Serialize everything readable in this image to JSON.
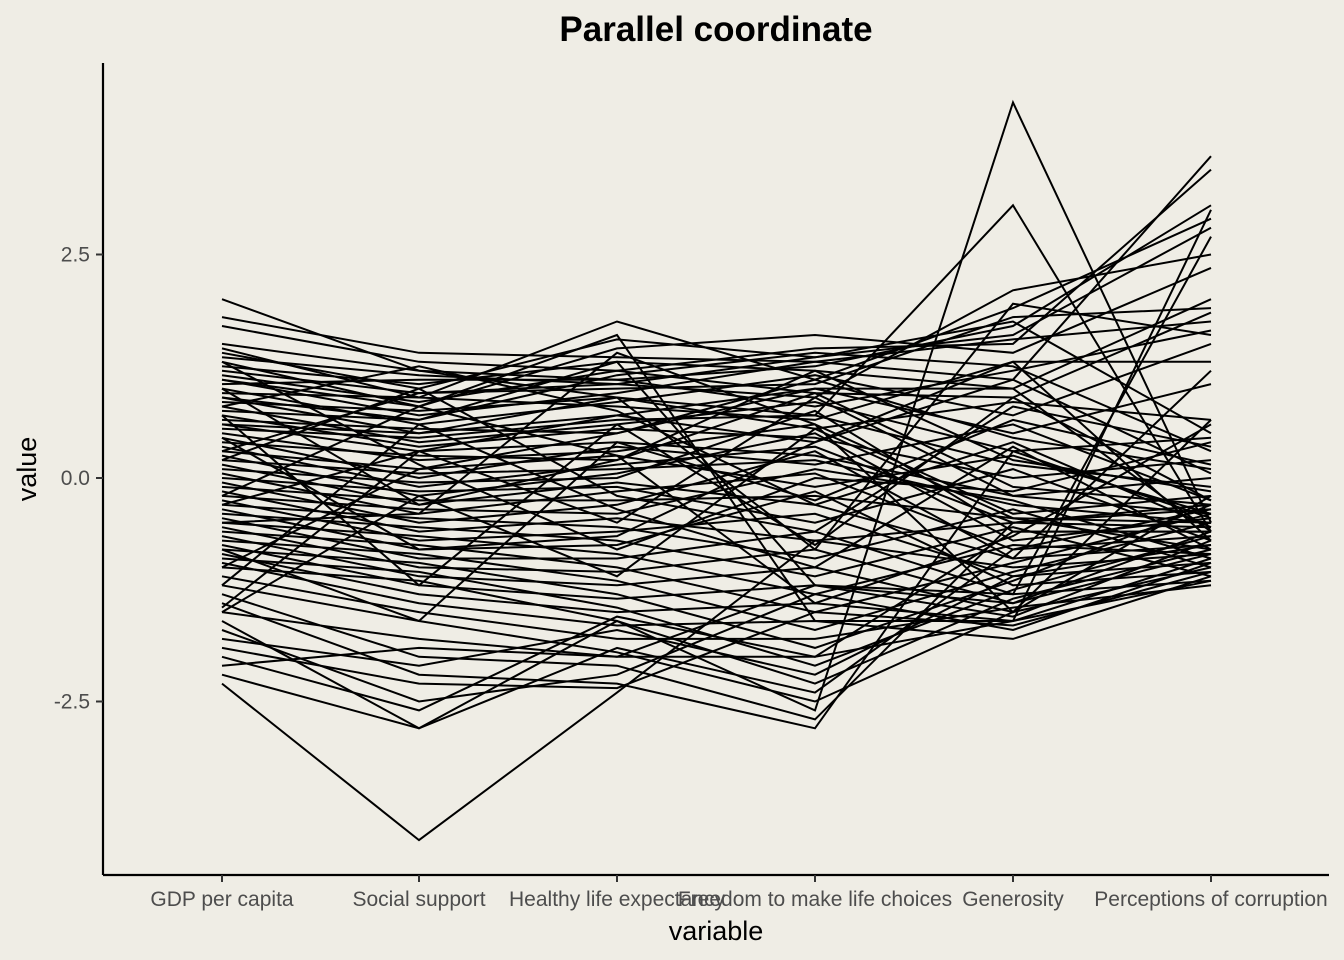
{
  "chart_data": {
    "type": "line",
    "title": "Parallel coordinate",
    "xlabel": "variable",
    "ylabel": "value",
    "categories": [
      "GDP per capita",
      "Social support",
      "Healthy life expectancy",
      "Freedom to make life choices",
      "Generosity",
      "Perceptions of corruption"
    ],
    "y_ticks": [
      -2.5,
      0.0,
      2.5
    ],
    "y_tick_labels": [
      "-2.5",
      "0.0",
      "2.5"
    ],
    "ylim": [
      -4.4,
      4.6
    ],
    "grid": false,
    "legend": "none",
    "series": [
      {
        "values": [
          -2.3,
          -4.05,
          -2.4,
          -0.7,
          -0.5,
          -0.3
        ]
      },
      {
        "values": [
          -2.2,
          -2.8,
          -1.6,
          -2.6,
          4.2,
          -0.5
        ]
      },
      {
        "values": [
          2.0,
          1.2,
          0.9,
          0.7,
          3.05,
          -0.6
        ]
      },
      {
        "values": [
          1.8,
          1.4,
          1.35,
          1.3,
          1.1,
          3.6
        ]
      },
      {
        "values": [
          1.7,
          1.3,
          1.2,
          1.45,
          1.5,
          3.45
        ]
      },
      {
        "values": [
          1.5,
          1.2,
          1.1,
          1.25,
          1.7,
          3.05
        ]
      },
      {
        "values": [
          1.45,
          0.9,
          1.75,
          1.1,
          1.9,
          2.9
        ]
      },
      {
        "values": [
          1.4,
          1.0,
          1.55,
          1.35,
          1.6,
          2.8
        ]
      },
      {
        "values": [
          1.35,
          1.15,
          1.05,
          0.9,
          2.1,
          2.5
        ]
      },
      {
        "values": [
          1.3,
          0.8,
          1.45,
          1.6,
          1.4,
          2.35
        ]
      },
      {
        "values": [
          1.25,
          1.05,
          1.3,
          1.2,
          1.0,
          2.0
        ]
      },
      {
        "values": [
          1.2,
          0.95,
          1.0,
          1.05,
          1.8,
          1.9
        ]
      },
      {
        "values": [
          1.15,
          0.85,
          1.2,
          0.95,
          0.9,
          1.85
        ]
      },
      {
        "values": [
          1.1,
          0.7,
          0.95,
          1.3,
          1.55,
          1.75
        ]
      },
      {
        "values": [
          1.05,
          1.1,
          1.1,
          0.8,
          1.2,
          1.65
        ]
      },
      {
        "values": [
          1.0,
          0.6,
          0.85,
          1.15,
          0.7,
          1.5
        ]
      },
      {
        "values": [
          0.95,
          0.9,
          0.8,
          0.65,
          1.3,
          1.3
        ]
      },
      {
        "values": [
          0.9,
          0.5,
          0.7,
          1.0,
          0.5,
          1.05
        ]
      },
      {
        "values": [
          0.85,
          0.75,
          0.9,
          0.55,
          0.85,
          0.65
        ]
      },
      {
        "values": [
          0.8,
          0.4,
          0.6,
          0.85,
          0.3,
          0.45
        ]
      },
      {
        "values": [
          0.75,
          0.65,
          1.15,
          1.4,
          1.25,
          0.3
        ]
      },
      {
        "values": [
          0.7,
          0.35,
          0.55,
          0.45,
          0.0,
          0.2
        ]
      },
      {
        "values": [
          0.65,
          0.55,
          0.5,
          1.1,
          0.45,
          0.1
        ]
      },
      {
        "values": [
          0.6,
          0.3,
          0.4,
          0.25,
          -0.2,
          0.0
        ]
      },
      {
        "values": [
          0.55,
          0.45,
          0.65,
          0.7,
          0.15,
          -0.1
        ]
      },
      {
        "values": [
          0.5,
          0.2,
          0.3,
          0.6,
          -0.4,
          -0.2
        ]
      },
      {
        "values": [
          0.45,
          0.0,
          0.35,
          0.15,
          0.6,
          -0.25
        ]
      },
      {
        "values": [
          0.4,
          0.25,
          0.2,
          0.95,
          -0.1,
          -0.3
        ]
      },
      {
        "values": [
          0.35,
          -0.1,
          0.15,
          0.35,
          -0.5,
          -0.35
        ]
      },
      {
        "values": [
          0.3,
          0.1,
          0.25,
          -0.1,
          0.25,
          -0.4
        ]
      },
      {
        "values": [
          0.25,
          -0.2,
          0.05,
          0.5,
          -0.7,
          -0.45
        ]
      },
      {
        "values": [
          0.2,
          0.05,
          0.1,
          0.2,
          -0.3,
          -0.5
        ]
      },
      {
        "values": [
          0.15,
          -0.3,
          -0.05,
          -0.3,
          0.4,
          -0.55
        ]
      },
      {
        "values": [
          0.1,
          -0.05,
          0.0,
          0.75,
          -0.6,
          -0.6
        ]
      },
      {
        "values": [
          0.05,
          -0.4,
          -0.15,
          0.05,
          -0.8,
          -0.65
        ]
      },
      {
        "values": [
          0.0,
          -0.15,
          -0.1,
          -0.5,
          0.1,
          -0.7
        ]
      },
      {
        "values": [
          -0.05,
          -0.5,
          -0.3,
          0.3,
          -0.9,
          -0.75
        ]
      },
      {
        "values": [
          -0.1,
          -0.25,
          -0.25,
          -0.2,
          -0.45,
          -0.8
        ]
      },
      {
        "values": [
          -0.15,
          -0.6,
          -0.45,
          -0.7,
          -1.0,
          -0.85
        ]
      },
      {
        "values": [
          -0.2,
          -0.35,
          -0.4,
          0.1,
          -0.25,
          -0.9
        ]
      },
      {
        "values": [
          -0.25,
          -0.7,
          -0.6,
          -0.4,
          -1.1,
          -0.95
        ]
      },
      {
        "values": [
          -0.3,
          -0.45,
          -0.55,
          -0.9,
          -0.35,
          -1.0
        ]
      },
      {
        "values": [
          -0.35,
          -0.8,
          -0.75,
          -0.15,
          -1.2,
          -1.05
        ]
      },
      {
        "values": [
          -0.4,
          -0.55,
          -0.7,
          -1.1,
          -0.55,
          -1.1
        ]
      },
      {
        "values": [
          -0.45,
          -0.9,
          -0.9,
          -0.6,
          -1.3,
          -1.15
        ]
      },
      {
        "values": [
          -0.5,
          -0.65,
          -0.85,
          -1.3,
          -0.75,
          -0.85
        ]
      },
      {
        "values": [
          -0.55,
          -1.0,
          -1.05,
          -0.8,
          -1.4,
          -0.6
        ]
      },
      {
        "values": [
          -0.6,
          -0.75,
          -1.0,
          -1.5,
          -0.95,
          -0.4
        ]
      },
      {
        "values": [
          -0.65,
          -1.1,
          -1.2,
          -1.0,
          -1.5,
          -0.2
        ]
      },
      {
        "values": [
          -0.7,
          -0.85,
          -1.15,
          -1.7,
          -1.05,
          -0.5
        ]
      },
      {
        "values": [
          -0.75,
          -1.2,
          -1.35,
          -1.2,
          -1.55,
          -0.7
        ]
      },
      {
        "values": [
          -0.8,
          -0.95,
          -1.3,
          -1.9,
          -1.15,
          -0.3
        ]
      },
      {
        "values": [
          -0.85,
          -1.3,
          -1.5,
          -1.4,
          -1.6,
          -0.9
        ]
      },
      {
        "values": [
          -0.9,
          -1.05,
          -1.45,
          -2.1,
          -1.25,
          -0.65
        ]
      },
      {
        "values": [
          -0.95,
          -1.4,
          -1.65,
          -1.6,
          -1.8,
          -1.1
        ]
      },
      {
        "values": [
          -1.0,
          -1.15,
          -1.6,
          -2.3,
          -1.35,
          -0.8
        ]
      },
      {
        "values": [
          -1.1,
          -1.5,
          -1.8,
          -1.8,
          -1.45,
          -1.2
        ]
      },
      {
        "values": [
          -1.2,
          -1.6,
          -1.95,
          -2.5,
          -1.5,
          -1.0
        ]
      },
      {
        "values": [
          -1.3,
          -2.0,
          -2.1,
          -2.7,
          -0.5,
          -0.55
        ]
      },
      {
        "values": [
          -1.4,
          -2.2,
          -2.3,
          -2.8,
          0.3,
          -0.45
        ]
      },
      {
        "values": [
          -1.5,
          -1.8,
          -2.0,
          -2.0,
          -1.6,
          -1.15
        ]
      },
      {
        "values": [
          -1.6,
          -2.8,
          -1.9,
          -2.4,
          -0.8,
          -0.35
        ]
      },
      {
        "values": [
          -1.7,
          -2.5,
          -2.2,
          -1.3,
          -1.7,
          -0.95
        ]
      },
      {
        "values": [
          -1.8,
          -2.1,
          -1.7,
          -2.2,
          -1.1,
          -0.75
        ]
      },
      {
        "values": [
          -1.9,
          -2.3,
          -2.35,
          -1.5,
          -1.65,
          -1.05
        ]
      },
      {
        "values": [
          -2.0,
          -2.6,
          -1.55,
          -2.0,
          -0.6,
          -0.6
        ]
      },
      {
        "values": [
          -2.1,
          -1.9,
          -2.0,
          -1.2,
          -1.4,
          -0.85
        ]
      },
      {
        "values": [
          1.1,
          0.8,
          1.6,
          -1.6,
          -1.6,
          3.0
        ]
      },
      {
        "values": [
          0.9,
          0.65,
          1.3,
          -1.2,
          -1.3,
          2.7
        ]
      },
      {
        "values": [
          0.6,
          0.5,
          0.9,
          -0.8,
          1.95,
          1.6
        ]
      },
      {
        "values": [
          -0.3,
          0.3,
          0.7,
          0.4,
          1.3,
          -0.7
        ]
      },
      {
        "values": [
          0.3,
          0.95,
          1.05,
          1.35,
          1.75,
          0.5
        ]
      },
      {
        "values": [
          -1.0,
          0.1,
          0.5,
          1.0,
          1.0,
          -0.6
        ]
      },
      {
        "values": [
          -0.5,
          -0.4,
          1.4,
          0.6,
          -1.5,
          0.65
        ]
      },
      {
        "values": [
          0.8,
          1.25,
          0.75,
          -0.3,
          -0.9,
          1.2
        ]
      },
      {
        "values": [
          0.2,
          1.0,
          -0.2,
          -0.6,
          0.8,
          0.35
        ]
      },
      {
        "values": [
          -1.45,
          0.3,
          -0.5,
          0.9,
          -0.2,
          -0.4
        ]
      },
      {
        "values": [
          1.0,
          -0.3,
          0.2,
          1.2,
          0.2,
          -0.15
        ]
      },
      {
        "values": [
          -0.8,
          -1.6,
          0.4,
          -0.25,
          0.65,
          0.15
        ]
      },
      {
        "values": [
          0.45,
          -0.8,
          -0.65,
          0.4,
          1.1,
          0.05
        ]
      },
      {
        "values": [
          -1.2,
          0.6,
          -0.35,
          -1.0,
          0.35,
          -0.8
        ]
      },
      {
        "values": [
          1.3,
          0.15,
          -0.8,
          0.0,
          -0.15,
          0.4
        ]
      },
      {
        "values": [
          -0.2,
          0.8,
          0.25,
          -1.4,
          -0.65,
          0.6
        ]
      },
      {
        "values": [
          0.7,
          -1.2,
          0.6,
          -0.75,
          0.9,
          -0.25
        ]
      },
      {
        "values": [
          -1.5,
          -0.2,
          -1.1,
          0.55,
          -0.45,
          -0.5
        ]
      }
    ]
  }
}
